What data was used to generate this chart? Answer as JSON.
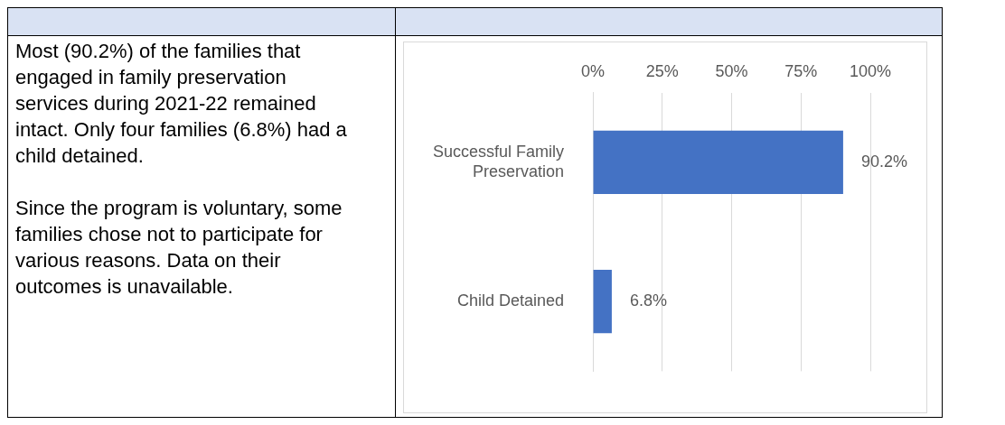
{
  "chart_data": {
    "type": "bar",
    "orientation": "horizontal",
    "categories": [
      "Successful Family Preservation",
      "Child Detained"
    ],
    "values": [
      90.2,
      6.8
    ],
    "color": "#4472c4",
    "value_labels": [
      "90.2%",
      "6.8%"
    ],
    "xlim": [
      0,
      100
    ],
    "xticks": [
      {
        "value": 0,
        "label": "0%"
      },
      {
        "value": 25,
        "label": "25%"
      },
      {
        "value": 50,
        "label": "50%"
      },
      {
        "value": 75,
        "label": "75%"
      },
      {
        "value": 100,
        "label": "100%"
      }
    ],
    "grid": "x",
    "legend": false,
    "annotations": [
      "Most (90.2%) of the families that engaged in family preservation services during 2021-22 remained intact. Only four families (6.8%) had a child detained.",
      "Since the program is voluntary, some families chose not to participate for various reasons. Data on their outcomes is unavailable."
    ]
  }
}
